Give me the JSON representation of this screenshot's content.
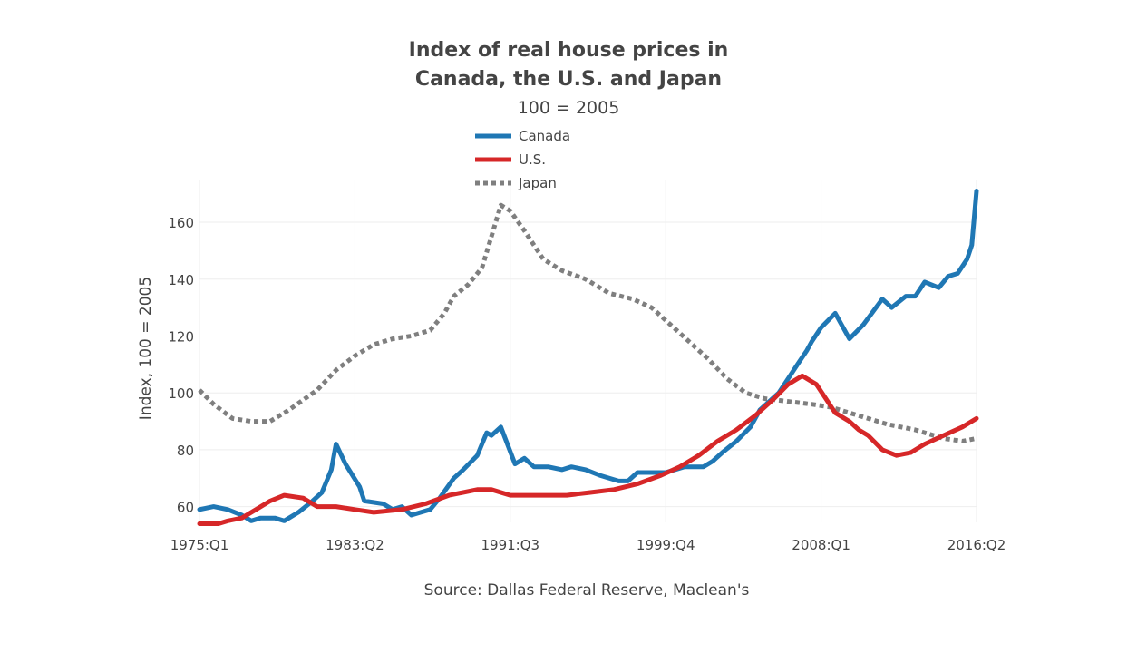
{
  "chart_data": {
    "type": "line",
    "title_line1": "Index of real house prices in",
    "title_line2": "Canada, the U.S. and Japan",
    "subtitle": "100 = 2005",
    "ylabel": "Index, 100 = 2005",
    "xlabel": "",
    "source": "Source: Dallas Federal Reserve, Maclean's",
    "ylim": [
      50,
      175
    ],
    "yticks": [
      60,
      80,
      100,
      120,
      140,
      160
    ],
    "xticks": [
      "1975:Q1",
      "1983:Q2",
      "1991:Q3",
      "1999:Q4",
      "2008:Q1",
      "2016:Q2"
    ],
    "x_start": "1975:Q1",
    "x_end": "2016:Q2",
    "grid": true,
    "legend_position": "top-center",
    "series": [
      {
        "name": "Canada",
        "color": "#1f77b4",
        "dash": "solid",
        "points": [
          [
            "1975:Q1",
            59
          ],
          [
            "1975:Q4",
            60
          ],
          [
            "1976:Q3",
            59
          ],
          [
            "1977:Q2",
            57
          ],
          [
            "1977:Q4",
            55
          ],
          [
            "1978:Q2",
            56
          ],
          [
            "1979:Q1",
            56
          ],
          [
            "1979:Q3",
            55
          ],
          [
            "1980:Q2",
            58
          ],
          [
            "1981:Q1",
            62
          ],
          [
            "1981:Q3",
            65
          ],
          [
            "1982:Q1",
            73
          ],
          [
            "1982:Q2",
            82
          ],
          [
            "1982:Q4",
            75
          ],
          [
            "1983:Q3",
            67
          ],
          [
            "1983:Q4",
            62
          ],
          [
            "1984:Q4",
            61
          ],
          [
            "1985:Q2",
            59
          ],
          [
            "1985:Q4",
            60
          ],
          [
            "1986:Q2",
            57
          ],
          [
            "1986:Q4",
            58
          ],
          [
            "1987:Q2",
            59
          ],
          [
            "1987:Q4",
            63
          ],
          [
            "1988:Q3",
            70
          ],
          [
            "1989:Q1",
            73
          ],
          [
            "1989:Q4",
            78
          ],
          [
            "1990:Q2",
            86
          ],
          [
            "1990:Q3",
            85
          ],
          [
            "1991:Q1",
            88
          ],
          [
            "1991:Q4",
            75
          ],
          [
            "1992:Q2",
            77
          ],
          [
            "1992:Q4",
            74
          ],
          [
            "1993:Q3",
            74
          ],
          [
            "1994:Q2",
            73
          ],
          [
            "1994:Q4",
            74
          ],
          [
            "1995:Q3",
            73
          ],
          [
            "1996:Q2",
            71
          ],
          [
            "1997:Q2",
            69
          ],
          [
            "1997:Q4",
            69
          ],
          [
            "1998:Q2",
            72
          ],
          [
            "1999:Q1",
            72
          ],
          [
            "1999:Q4",
            72
          ],
          [
            "2000:Q4",
            74
          ],
          [
            "2001:Q4",
            74
          ],
          [
            "2002:Q2",
            76
          ],
          [
            "2002:Q4",
            79
          ],
          [
            "2003:Q3",
            83
          ],
          [
            "2004:Q2",
            88
          ],
          [
            "2004:Q4",
            94
          ],
          [
            "2005:Q4",
            100
          ],
          [
            "2006:Q4",
            110
          ],
          [
            "2007:Q2",
            115
          ],
          [
            "2007:Q3",
            118
          ],
          [
            "2008:Q1",
            123
          ],
          [
            "2008:Q4",
            128
          ],
          [
            "2009:Q3",
            119
          ],
          [
            "2010:Q2",
            124
          ],
          [
            "2011:Q2",
            133
          ],
          [
            "2011:Q4",
            130
          ],
          [
            "2012:Q3",
            134
          ],
          [
            "2013:Q1",
            134
          ],
          [
            "2013:Q3",
            139
          ],
          [
            "2014:Q2",
            137
          ],
          [
            "2014:Q4",
            141
          ],
          [
            "2015:Q2",
            142
          ],
          [
            "2015:Q4",
            147
          ],
          [
            "2016:Q1",
            152
          ],
          [
            "2016:Q2",
            171
          ]
        ]
      },
      {
        "name": "U.S.",
        "color": "#d62728",
        "dash": "solid",
        "points": [
          [
            "1975:Q1",
            54
          ],
          [
            "1975:Q3",
            54
          ],
          [
            "1976:Q1",
            54
          ],
          [
            "1976:Q3",
            55
          ],
          [
            "1977:Q2",
            56
          ],
          [
            "1978:Q1",
            59
          ],
          [
            "1978:Q4",
            62
          ],
          [
            "1979:Q3",
            64
          ],
          [
            "1980:Q3",
            63
          ],
          [
            "1981:Q2",
            60
          ],
          [
            "1982:Q2",
            60
          ],
          [
            "1983:Q2",
            59
          ],
          [
            "1984:Q2",
            58
          ],
          [
            "1985:Q4",
            59
          ],
          [
            "1987:Q1",
            61
          ],
          [
            "1988:Q2",
            64
          ],
          [
            "1989:Q4",
            66
          ],
          [
            "1990:Q3",
            66
          ],
          [
            "1991:Q3",
            64
          ],
          [
            "1993:Q1",
            64
          ],
          [
            "1994:Q3",
            64
          ],
          [
            "1995:Q4",
            65
          ],
          [
            "1997:Q1",
            66
          ],
          [
            "1998:Q2",
            68
          ],
          [
            "1999:Q3",
            71
          ],
          [
            "2000:Q3",
            74
          ],
          [
            "2001:Q3",
            78
          ],
          [
            "2002:Q3",
            83
          ],
          [
            "2003:Q3",
            87
          ],
          [
            "2004:Q3",
            92
          ],
          [
            "2005:Q3",
            98
          ],
          [
            "2006:Q2",
            103
          ],
          [
            "2007:Q1",
            106
          ],
          [
            "2007:Q4",
            103
          ],
          [
            "2008:Q2",
            98
          ],
          [
            "2008:Q4",
            93
          ],
          [
            "2009:Q3",
            90
          ],
          [
            "2010:Q1",
            87
          ],
          [
            "2010:Q3",
            85
          ],
          [
            "2011:Q2",
            80
          ],
          [
            "2012:Q1",
            78
          ],
          [
            "2012:Q4",
            79
          ],
          [
            "2013:Q3",
            82
          ],
          [
            "2014:Q3",
            85
          ],
          [
            "2015:Q3",
            88
          ],
          [
            "2016:Q2",
            91
          ]
        ]
      },
      {
        "name": "Japan",
        "color": "#7f7f7f",
        "dash": "dot",
        "points": [
          [
            "1975:Q1",
            101
          ],
          [
            "1975:Q4",
            96
          ],
          [
            "1976:Q4",
            91
          ],
          [
            "1977:Q4",
            90
          ],
          [
            "1978:Q4",
            90
          ],
          [
            "1979:Q4",
            94
          ],
          [
            "1981:Q2",
            101
          ],
          [
            "1982:Q2",
            108
          ],
          [
            "1983:Q2",
            113
          ],
          [
            "1984:Q2",
            117
          ],
          [
            "1985:Q2",
            119
          ],
          [
            "1986:Q2",
            120
          ],
          [
            "1987:Q2",
            122
          ],
          [
            "1988:Q1",
            128
          ],
          [
            "1988:Q3",
            134
          ],
          [
            "1989:Q2",
            138
          ],
          [
            "1990:Q1",
            144
          ],
          [
            "1990:Q3",
            155
          ],
          [
            "1991:Q1",
            166
          ],
          [
            "1991:Q3",
            164
          ],
          [
            "1992:Q2",
            157
          ],
          [
            "1993:Q2",
            147
          ],
          [
            "1994:Q2",
            143
          ],
          [
            "1995:Q3",
            140
          ],
          [
            "1996:Q4",
            135
          ],
          [
            "1998:Q1",
            133
          ],
          [
            "1999:Q1",
            130
          ],
          [
            "2000:Q1",
            124
          ],
          [
            "2001:Q1",
            118
          ],
          [
            "2002:Q1",
            112
          ],
          [
            "2003:Q1",
            105
          ],
          [
            "2004:Q1",
            100
          ],
          [
            "2005:Q1",
            98
          ],
          [
            "2006:Q2",
            97
          ],
          [
            "2007:Q3",
            96
          ],
          [
            "2008:Q3",
            95
          ],
          [
            "2010:Q1",
            92
          ],
          [
            "2011:Q3",
            89
          ],
          [
            "2013:Q1",
            87
          ],
          [
            "2014:Q3",
            84
          ],
          [
            "2015:Q3",
            83
          ],
          [
            "2016:Q2",
            84
          ]
        ]
      }
    ]
  }
}
